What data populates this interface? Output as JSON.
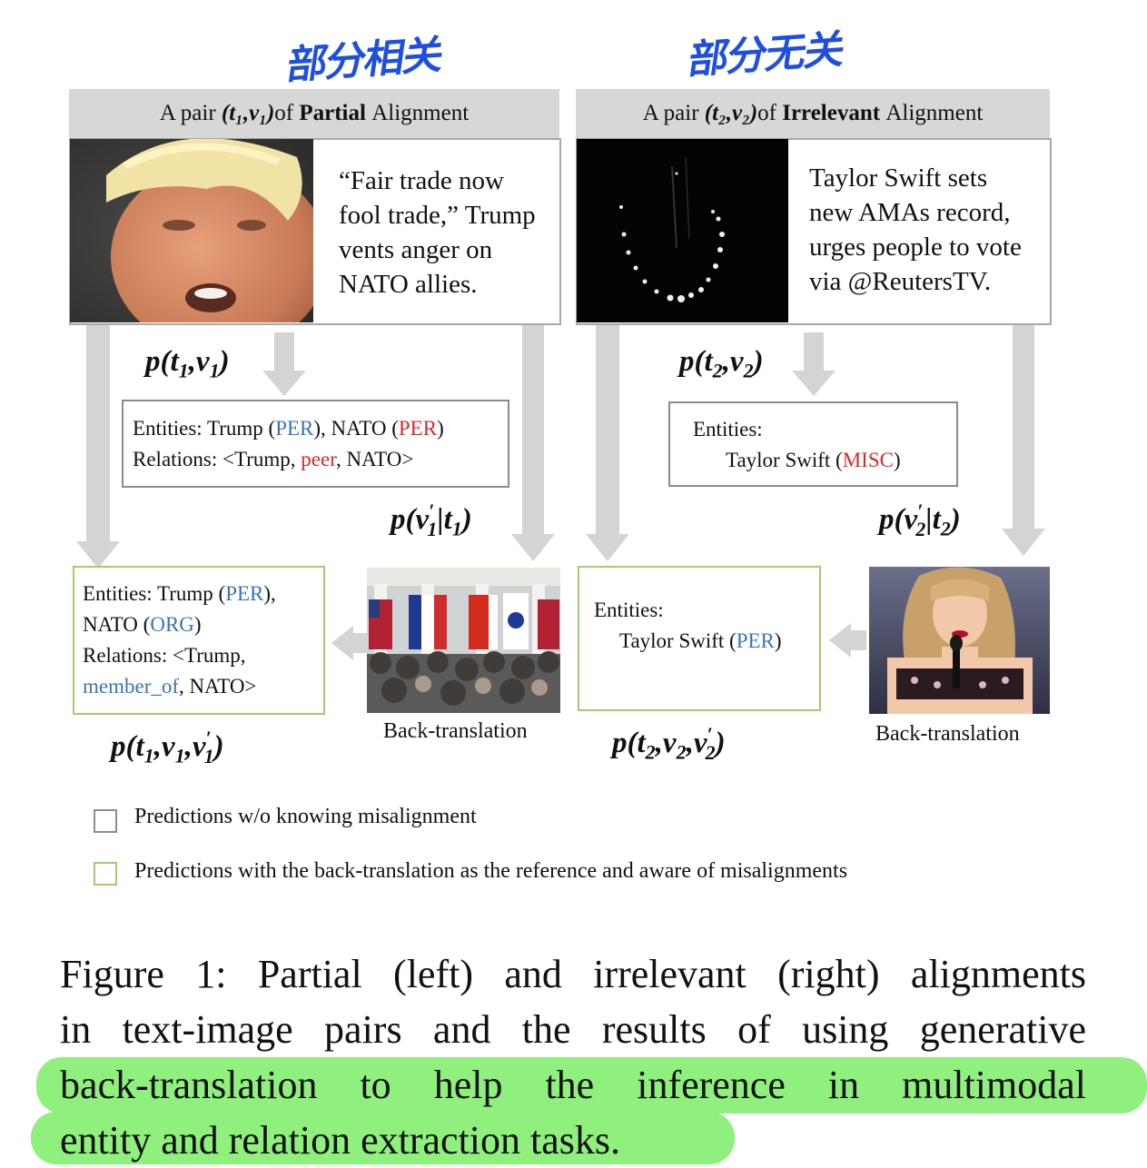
{
  "annotations": {
    "left_handwriting": "部分相关",
    "right_handwriting": "部分无关"
  },
  "left_panel": {
    "header": {
      "prefix": "A pair ",
      "math": "(t₁,v₁)",
      "of": " of ",
      "bold": "Partial",
      "suffix": " Alignment"
    },
    "text_lines": [
      "“Fair trade now",
      "fool trade,” Trump",
      "vents anger on",
      "NATO allies."
    ],
    "prob_top": {
      "p": "p(t",
      "i1": "1",
      "mid": ",v",
      "i2": "1",
      "end": ")"
    },
    "entities_box": {
      "line1": {
        "a": "Entities: Trump (",
        "b": "PER",
        "c": "), NATO (",
        "d": "PER",
        "e": ")"
      },
      "line2": {
        "a": "Relations: <Trump, ",
        "b": "peer",
        "c": ", NATO>"
      }
    },
    "prob_back": {
      "p": "p(v",
      "prime": "′",
      "i1": "1",
      "mid": "|t",
      "i2": "1",
      "end": ")"
    },
    "result_box": {
      "line1": {
        "a": "Entities: Trump (",
        "b": "PER",
        "c": "),"
      },
      "line2": {
        "a": "NATO (",
        "b": "ORG",
        "c": ")"
      },
      "line3": "Relations: <Trump,",
      "line4": {
        "a": "member_of",
        "b": ", NATO>"
      }
    },
    "prob_bottom": {
      "p": "p(t",
      "i1": "1",
      "mid": ",v",
      "i2": "1",
      "mid2": ",v",
      "prime": "′",
      "i3": "1",
      "end": ")"
    },
    "back_translation_label": "Back-translation"
  },
  "right_panel": {
    "header": {
      "prefix": "A pair ",
      "math": "(t₂,v₂)",
      "of": " of ",
      "bold": "Irrelevant",
      "suffix": " Alignment"
    },
    "text_lines": [
      "Taylor Swift sets",
      "new AMAs record,",
      "urges people to vote",
      "via @ReutersTV."
    ],
    "prob_top": {
      "p": "p(t",
      "i1": "2",
      "mid": ",v",
      "i2": "2",
      "end": ")"
    },
    "entities_box": {
      "line1": "Entities:",
      "line2": {
        "a": "Taylor Swift (",
        "b": "MISC",
        "c": ")"
      }
    },
    "prob_back": {
      "p": "p(v",
      "prime": "′",
      "i1": "2",
      "mid": "|t",
      "i2": "2",
      "end": ")"
    },
    "result_box": {
      "line1": "Entities:",
      "line2": {
        "a": "Taylor Swift (",
        "b": "PER",
        "c": ")"
      }
    },
    "prob_bottom": {
      "p": "p(t",
      "i1": "2",
      "mid": ",v",
      "i2": "2",
      "mid2": ",v",
      "prime": "′",
      "i3": "2",
      "end": ")"
    },
    "back_translation_label": "Back-translation"
  },
  "legend": {
    "gray": "Predictions w/o knowing misalignment",
    "green": "Predictions with the back-translation as the reference and aware of misalignments"
  },
  "caption": {
    "line1": "Figure 1: Partial (left) and irrelevant (right) alignments",
    "line2": "in text-image pairs and the results of using generative",
    "line3": "back-translation to help the inference in multimodal",
    "line4": "entity and relation extraction tasks."
  },
  "colors": {
    "entity_blue": "#3b73b9",
    "entity_red": "#d62a2a",
    "green_border": "#9fce6a",
    "highlight": "#8ff07e",
    "handwriting": "#1f4fe0"
  }
}
